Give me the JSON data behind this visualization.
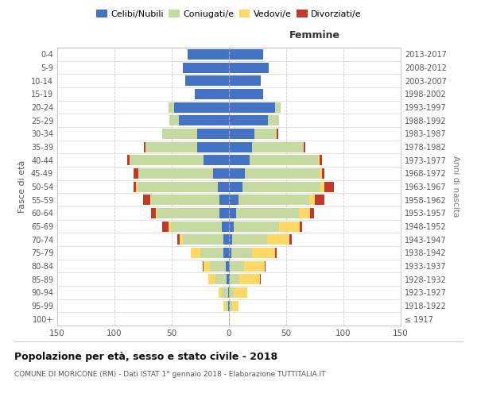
{
  "age_groups": [
    "100+",
    "95-99",
    "90-94",
    "85-89",
    "80-84",
    "75-79",
    "70-74",
    "65-69",
    "60-64",
    "55-59",
    "50-54",
    "45-49",
    "40-44",
    "35-39",
    "30-34",
    "25-29",
    "20-24",
    "15-19",
    "10-14",
    "5-9",
    "0-4"
  ],
  "birth_years": [
    "≤ 1917",
    "1918-1922",
    "1923-1927",
    "1928-1932",
    "1933-1937",
    "1938-1942",
    "1943-1947",
    "1948-1952",
    "1953-1957",
    "1958-1962",
    "1963-1967",
    "1968-1972",
    "1973-1977",
    "1978-1982",
    "1983-1987",
    "1988-1992",
    "1993-1997",
    "1998-2002",
    "2003-2007",
    "2008-2012",
    "2013-2017"
  ],
  "maschi": {
    "celibe": [
      0,
      1,
      1,
      2,
      3,
      5,
      5,
      6,
      8,
      8,
      10,
      14,
      22,
      28,
      28,
      44,
      48,
      30,
      38,
      40,
      36
    ],
    "coniugato": [
      0,
      2,
      5,
      10,
      14,
      20,
      35,
      45,
      55,
      60,
      70,
      65,
      65,
      45,
      30,
      8,
      5,
      0,
      0,
      0,
      0
    ],
    "vedovo": [
      0,
      2,
      3,
      6,
      5,
      8,
      3,
      2,
      1,
      1,
      1,
      0,
      0,
      0,
      0,
      0,
      0,
      0,
      0,
      0,
      0
    ],
    "divorziato": [
      0,
      0,
      0,
      0,
      1,
      0,
      2,
      5,
      4,
      6,
      2,
      4,
      2,
      1,
      0,
      0,
      0,
      0,
      0,
      0,
      0
    ]
  },
  "femmine": {
    "celibe": [
      0,
      1,
      0,
      1,
      1,
      2,
      3,
      4,
      6,
      8,
      12,
      14,
      18,
      20,
      22,
      34,
      40,
      30,
      28,
      35,
      30
    ],
    "coniugato": [
      0,
      2,
      4,
      8,
      12,
      18,
      30,
      40,
      55,
      62,
      68,
      65,
      60,
      45,
      20,
      10,
      5,
      0,
      0,
      0,
      0
    ],
    "vedovo": [
      1,
      5,
      12,
      18,
      18,
      20,
      20,
      18,
      10,
      5,
      3,
      2,
      1,
      0,
      0,
      0,
      0,
      0,
      0,
      0,
      0
    ],
    "divorziato": [
      0,
      0,
      0,
      1,
      1,
      2,
      2,
      2,
      3,
      8,
      9,
      2,
      2,
      2,
      1,
      0,
      0,
      0,
      0,
      0,
      0
    ]
  },
  "colors": {
    "celibe": "#4472C4",
    "coniugato": "#c5d9a0",
    "vedovo": "#ffd966",
    "divorziato": "#c0392b"
  },
  "xlim": 150,
  "title": "Popolazione per età, sesso e stato civile - 2018",
  "subtitle": "COMUNE DI MORICONE (RM) - Dati ISTAT 1° gennaio 2018 - Elaborazione TUTTITALIA.IT",
  "ylabel": "Fasce di età",
  "right_ylabel": "Anni di nascita",
  "legend_labels": [
    "Celibi/Nubili",
    "Coniugati/e",
    "Vedovi/e",
    "Divorziati/e"
  ],
  "background_color": "#ffffff",
  "grid_color": "#cccccc"
}
